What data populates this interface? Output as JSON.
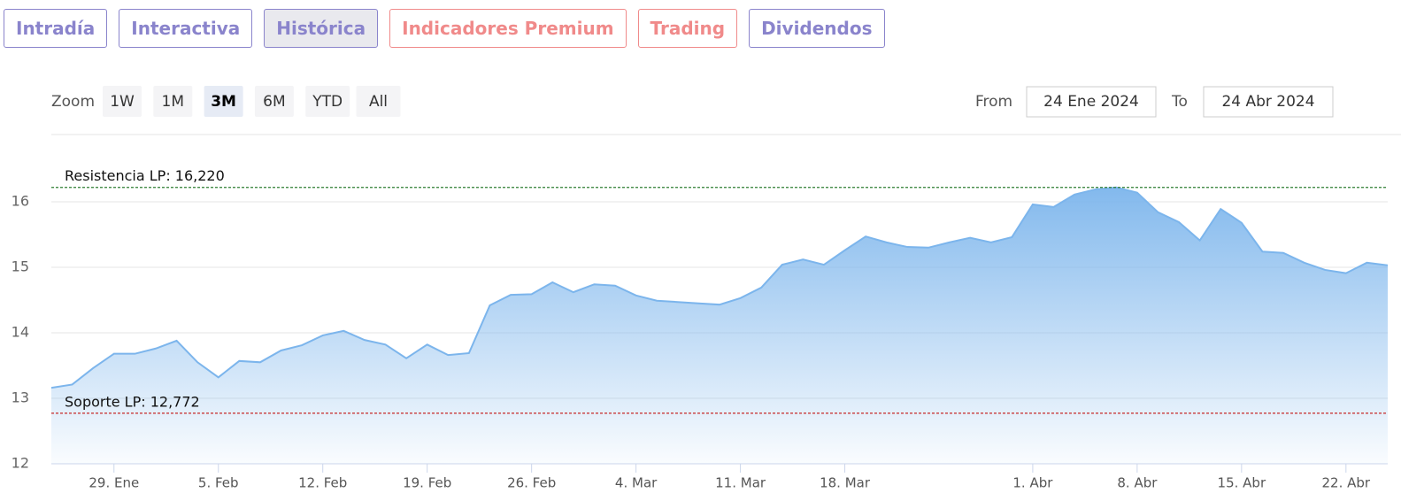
{
  "tabs": [
    {
      "label": "Intradía",
      "color": "#8a84cc"
    },
    {
      "label": "Interactiva",
      "color": "#8a84cc"
    },
    {
      "label": "Histórica",
      "color": "#8a84cc"
    },
    {
      "label": "Indicadores Premium",
      "color": "#f08a8a"
    },
    {
      "label": "Trading",
      "color": "#f08a8a"
    },
    {
      "label": "Dividendos",
      "color": "#8a84cc"
    }
  ],
  "active_tab": 2,
  "range_selector": {
    "label": "Zoom",
    "buttons": [
      "1W",
      "1M",
      "3M",
      "6M",
      "YTD",
      "All"
    ],
    "selected": 2,
    "from_label": "From",
    "from": "24 Ene 2024",
    "to_label": "To",
    "to": "24 Abr 2024"
  },
  "chart_data": {
    "type": "area",
    "color": "#7cb5ec",
    "categories": [
      null,
      null,
      null,
      "29. Ene",
      null,
      null,
      null,
      null,
      "5. Feb",
      null,
      null,
      null,
      null,
      "12. Feb",
      null,
      null,
      null,
      null,
      "19. Feb",
      null,
      null,
      null,
      null,
      "26. Feb",
      null,
      null,
      null,
      null,
      "4. Mar",
      null,
      null,
      null,
      null,
      "11. Mar",
      null,
      null,
      null,
      null,
      "18. Mar",
      null,
      null,
      null,
      null,
      null,
      null,
      null,
      null,
      "1. Abr",
      null,
      null,
      null,
      null,
      "8. Abr",
      null,
      null,
      null,
      null,
      "15. Abr",
      null,
      null,
      null,
      null,
      "22. Abr",
      null,
      null
    ],
    "values": [
      13.16,
      13.21,
      13.46,
      13.68,
      13.68,
      13.76,
      13.88,
      13.55,
      13.32,
      13.57,
      13.55,
      13.73,
      13.81,
      13.96,
      14.03,
      13.89,
      13.82,
      13.61,
      13.82,
      13.66,
      13.69,
      14.42,
      14.58,
      14.59,
      14.77,
      14.62,
      14.74,
      14.72,
      14.57,
      14.49,
      14.47,
      14.45,
      14.43,
      14.53,
      14.69,
      15.04,
      15.12,
      15.04,
      15.26,
      15.47,
      15.38,
      15.31,
      15.3,
      15.38,
      15.45,
      15.38,
      15.46,
      15.96,
      15.92,
      16.11,
      16.19,
      16.22,
      16.14,
      15.84,
      15.69,
      15.41,
      15.89,
      15.68,
      15.24,
      15.22,
      15.07,
      14.96,
      14.91,
      15.07,
      15.03
    ],
    "ylim": [
      12,
      16.5
    ],
    "yticks": [
      12,
      13,
      14,
      15,
      16
    ],
    "grid": true,
    "reference_lines": [
      {
        "value": 16.22,
        "label": "Resistencia LP: 16,220",
        "color": "#2e7d32"
      },
      {
        "value": 12.772,
        "label": "Soporte LP: 12,772",
        "color": "#c62828"
      }
    ]
  }
}
